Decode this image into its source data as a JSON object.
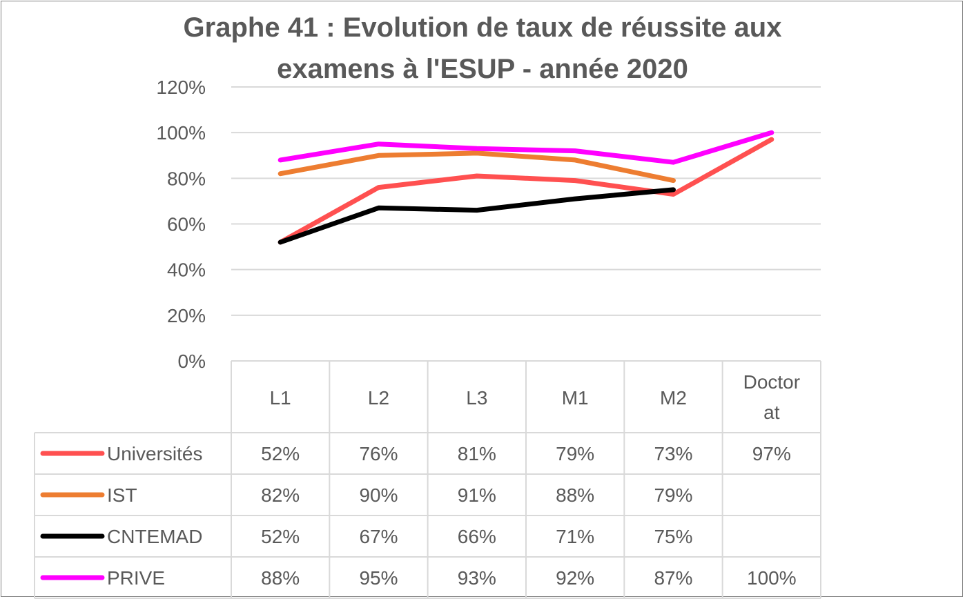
{
  "chart_data": {
    "type": "line",
    "title": "Graphe 41 : Evolution de taux de réussite aux examens à l'ESUP - année 2020",
    "title_lines": [
      "Graphe 41 : Evolution de taux de réussite aux",
      "examens à l'ESUP - année 2020"
    ],
    "categories": [
      "L1",
      "L2",
      "L3",
      "M1",
      "M2",
      "Doctorat"
    ],
    "category_lines": [
      [
        "L1"
      ],
      [
        "L2"
      ],
      [
        "L3"
      ],
      [
        "M1"
      ],
      [
        "M2"
      ],
      [
        "Doctor",
        "at"
      ]
    ],
    "yticks": [
      "0%",
      "20%",
      "40%",
      "60%",
      "80%",
      "100%",
      "120%"
    ],
    "ylim": [
      0,
      1.2
    ],
    "grid": true,
    "legend": "data-table",
    "series": [
      {
        "name": "Universités",
        "color": "#FF5050",
        "values": [
          0.52,
          0.76,
          0.81,
          0.79,
          0.73,
          0.97
        ],
        "labels": [
          "52%",
          "76%",
          "81%",
          "79%",
          "73%",
          "97%"
        ]
      },
      {
        "name": "IST",
        "color": "#ED7D31",
        "values": [
          0.82,
          0.9,
          0.91,
          0.88,
          0.79,
          null
        ],
        "labels": [
          "82%",
          "90%",
          "91%",
          "88%",
          "79%",
          ""
        ]
      },
      {
        "name": "CNTEMAD",
        "color": "#000000",
        "values": [
          0.52,
          0.67,
          0.66,
          0.71,
          0.75,
          null
        ],
        "labels": [
          "52%",
          "67%",
          "66%",
          "71%",
          "75%",
          ""
        ]
      },
      {
        "name": "PRIVE",
        "color": "#FF00FF",
        "values": [
          0.88,
          0.95,
          0.93,
          0.92,
          0.87,
          1.0
        ],
        "labels": [
          "88%",
          "95%",
          "93%",
          "92%",
          "87%",
          "100%"
        ]
      }
    ]
  }
}
